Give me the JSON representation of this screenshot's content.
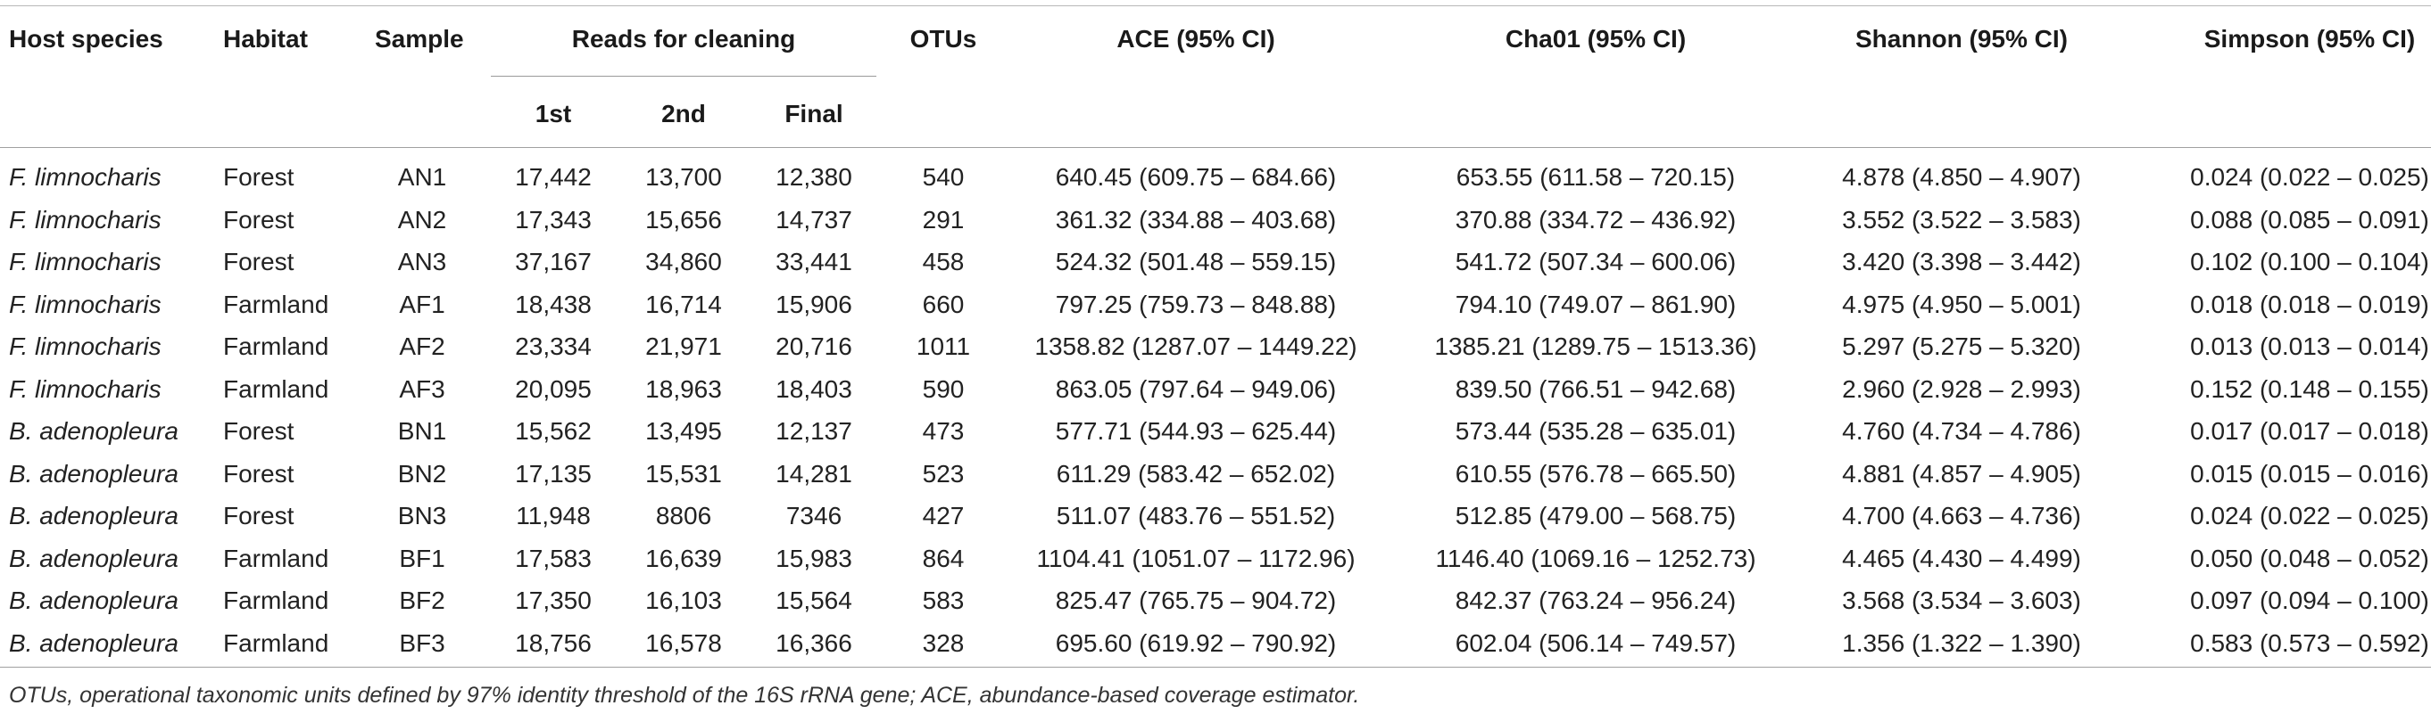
{
  "table": {
    "headers": {
      "host_species": "Host species",
      "habitat": "Habitat",
      "sample": "Sample",
      "reads_group": "Reads for cleaning",
      "reads_1st": "1st",
      "reads_2nd": "2nd",
      "reads_final": "Final",
      "otus": "OTUs",
      "ace": "ACE (95% CI)",
      "chao1": "Cha01 (95% CI)",
      "shannon": "Shannon (95% CI)",
      "simpson": "Simpson (95% CI)"
    },
    "rows": [
      {
        "species": "F. limnocharis",
        "habitat": "Forest",
        "sample": "AN1",
        "r1": "17,442",
        "r2": "13,700",
        "rf": "12,380",
        "otus": "540",
        "ace": "640.45 (609.75 – 684.66)",
        "chao1": "653.55 (611.58 – 720.15)",
        "shannon": "4.878 (4.850 – 4.907)",
        "simpson": "0.024 (0.022 – 0.025)"
      },
      {
        "species": "F. limnocharis",
        "habitat": "Forest",
        "sample": "AN2",
        "r1": "17,343",
        "r2": "15,656",
        "rf": "14,737",
        "otus": "291",
        "ace": "361.32 (334.88 – 403.68)",
        "chao1": "370.88 (334.72 – 436.92)",
        "shannon": "3.552 (3.522 – 3.583)",
        "simpson": "0.088 (0.085 – 0.091)"
      },
      {
        "species": "F. limnocharis",
        "habitat": "Forest",
        "sample": "AN3",
        "r1": "37,167",
        "r2": "34,860",
        "rf": "33,441",
        "otus": "458",
        "ace": "524.32 (501.48 – 559.15)",
        "chao1": "541.72 (507.34 – 600.06)",
        "shannon": "3.420 (3.398 – 3.442)",
        "simpson": "0.102 (0.100 – 0.104)"
      },
      {
        "species": "F. limnocharis",
        "habitat": "Farmland",
        "sample": "AF1",
        "r1": "18,438",
        "r2": "16,714",
        "rf": "15,906",
        "otus": "660",
        "ace": "797.25 (759.73 – 848.88)",
        "chao1": "794.10 (749.07 – 861.90)",
        "shannon": "4.975 (4.950 – 5.001)",
        "simpson": "0.018 (0.018 – 0.019)"
      },
      {
        "species": "F. limnocharis",
        "habitat": "Farmland",
        "sample": "AF2",
        "r1": "23,334",
        "r2": "21,971",
        "rf": "20,716",
        "otus": "1011",
        "ace": "1358.82 (1287.07 – 1449.22)",
        "chao1": "1385.21 (1289.75 – 1513.36)",
        "shannon": "5.297 (5.275 – 5.320)",
        "simpson": "0.013 (0.013 – 0.014)"
      },
      {
        "species": "F. limnocharis",
        "habitat": "Farmland",
        "sample": "AF3",
        "r1": "20,095",
        "r2": "18,963",
        "rf": "18,403",
        "otus": "590",
        "ace": "863.05 (797.64 – 949.06)",
        "chao1": "839.50 (766.51 – 942.68)",
        "shannon": "2.960 (2.928 – 2.993)",
        "simpson": "0.152 (0.148 – 0.155)"
      },
      {
        "species": "B. adenopleura",
        "habitat": "Forest",
        "sample": "BN1",
        "r1": "15,562",
        "r2": "13,495",
        "rf": "12,137",
        "otus": "473",
        "ace": "577.71 (544.93 – 625.44)",
        "chao1": "573.44 (535.28 – 635.01)",
        "shannon": "4.760 (4.734 – 4.786)",
        "simpson": "0.017 (0.017 – 0.018)"
      },
      {
        "species": "B. adenopleura",
        "habitat": "Forest",
        "sample": "BN2",
        "r1": "17,135",
        "r2": "15,531",
        "rf": "14,281",
        "otus": "523",
        "ace": "611.29 (583.42 – 652.02)",
        "chao1": "610.55 (576.78 – 665.50)",
        "shannon": "4.881 (4.857 – 4.905)",
        "simpson": "0.015 (0.015 – 0.016)"
      },
      {
        "species": "B. adenopleura",
        "habitat": "Forest",
        "sample": "BN3",
        "r1": "11,948",
        "r2": "8806",
        "rf": "7346",
        "otus": "427",
        "ace": "511.07 (483.76 – 551.52)",
        "chao1": "512.85 (479.00 – 568.75)",
        "shannon": "4.700 (4.663 – 4.736)",
        "simpson": "0.024 (0.022 – 0.025)"
      },
      {
        "species": "B. adenopleura",
        "habitat": "Farmland",
        "sample": "BF1",
        "r1": "17,583",
        "r2": "16,639",
        "rf": "15,983",
        "otus": "864",
        "ace": "1104.41 (1051.07 – 1172.96)",
        "chao1": "1146.40 (1069.16 – 1252.73)",
        "shannon": "4.465 (4.430 – 4.499)",
        "simpson": "0.050 (0.048 – 0.052)"
      },
      {
        "species": "B. adenopleura",
        "habitat": "Farmland",
        "sample": "BF2",
        "r1": "17,350",
        "r2": "16,103",
        "rf": "15,564",
        "otus": "583",
        "ace": "825.47 (765.75 – 904.72)",
        "chao1": "842.37 (763.24 – 956.24)",
        "shannon": "3.568 (3.534 – 3.603)",
        "simpson": "0.097 (0.094 – 0.100)"
      },
      {
        "species": "B. adenopleura",
        "habitat": "Farmland",
        "sample": "BF3",
        "r1": "18,756",
        "r2": "16,578",
        "rf": "16,366",
        "otus": "328",
        "ace": "695.60 (619.92 – 790.92)",
        "chao1": "602.04 (506.14 – 749.57)",
        "shannon": "1.356 (1.322 – 1.390)",
        "simpson": "0.583 (0.573 – 0.592)"
      }
    ],
    "footnote": "OTUs, operational taxonomic units defined by 97% identity threshold of the 16S rRNA gene; ACE, abundance-based coverage estimator."
  }
}
